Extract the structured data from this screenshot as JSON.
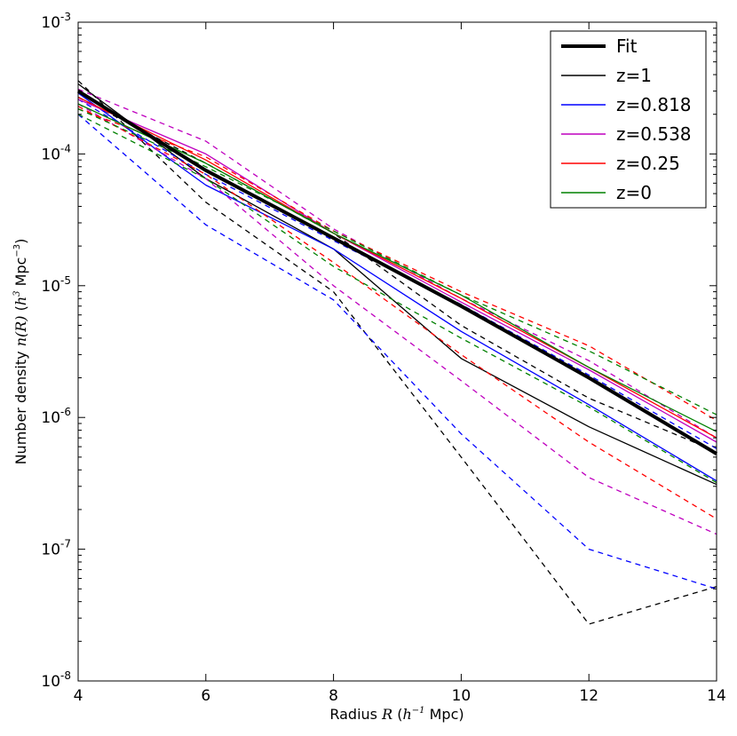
{
  "chart_data": {
    "type": "line",
    "title": "",
    "xlabel": {
      "prefix": "Radius ",
      "var": "R",
      "open": " (",
      "unit_base": "h",
      "unit_exp": "−1",
      "suffix": " Mpc)"
    },
    "ylabel": {
      "prefix": "Number density ",
      "func": "n(R)",
      "open": " (",
      "unit_base": "h",
      "unit_exp": "3",
      "mid": " Mpc",
      "mid_exp": "−3",
      "suffix": ")"
    },
    "xlim": [
      4,
      14
    ],
    "ylim_log10": [
      -8,
      -3
    ],
    "yscale": "log",
    "x_ticks": [
      "4",
      "6",
      "8",
      "10",
      "12",
      "14"
    ],
    "y_ticks": [
      {
        "exp": -8,
        "base": "10",
        "sup": "-8"
      },
      {
        "exp": -7,
        "base": "10",
        "sup": "-7"
      },
      {
        "exp": -6,
        "base": "10",
        "sup": "-6"
      },
      {
        "exp": -5,
        "base": "10",
        "sup": "-5"
      },
      {
        "exp": -4,
        "base": "10",
        "sup": "-4"
      },
      {
        "exp": -3,
        "base": "10",
        "sup": "-3"
      }
    ],
    "legend_position": "top-right",
    "x": [
      4,
      6,
      8,
      10,
      12,
      14
    ],
    "series": [
      {
        "name": "Fit",
        "color": "#000000",
        "style": "thick",
        "values": [
          0.0003,
          7.5e-05,
          2.3e-05,
          7e-06,
          2e-06,
          5.3e-07
        ]
      },
      {
        "name": "z=1",
        "color": "#000000",
        "style": "solid",
        "values": [
          0.00034,
          6.5e-05,
          1.9e-05,
          2.8e-06,
          8.5e-07,
          3.1e-07
        ]
      },
      {
        "name": "z=1 (dashed)",
        "color": "#000000",
        "style": "dashed",
        "legend": false,
        "values": [
          0.00036,
          4.3e-05,
          9e-06,
          5e-07,
          2.7e-08,
          5.2e-08
        ]
      },
      {
        "name": "z=1 (dashed 2)",
        "color": "#000000",
        "style": "dashed",
        "legend": false,
        "values": [
          0.00027,
          8.5e-05,
          2.5e-05,
          5e-06,
          1.4e-06,
          5.5e-07
        ]
      },
      {
        "name": "z=0.818",
        "color": "#0000ff",
        "style": "solid",
        "values": [
          0.00029,
          5.8e-05,
          1.9e-05,
          4.5e-06,
          1.25e-06,
          3.3e-07
        ]
      },
      {
        "name": "z=0.818 (dashed)",
        "color": "#0000ff",
        "style": "dashed",
        "legend": false,
        "values": [
          0.0002,
          2.9e-05,
          7.8e-06,
          7.5e-07,
          1e-07,
          5e-08
        ]
      },
      {
        "name": "z=0.818 (dashed 2)",
        "color": "#0000ff",
        "style": "dashed",
        "legend": false,
        "values": [
          0.00026,
          7e-05,
          2.2e-05,
          7.2e-06,
          2.1e-06,
          5.8e-07
        ]
      },
      {
        "name": "z=0.538",
        "color": "#bf00bf",
        "style": "solid",
        "values": [
          0.00026,
          0.0001,
          2.5e-05,
          7.5e-06,
          2.3e-06,
          6.5e-07
        ]
      },
      {
        "name": "z=0.538 (dashed)",
        "color": "#bf00bf",
        "style": "dashed",
        "legend": false,
        "values": [
          0.00031,
          0.000125,
          2.7e-05,
          8e-06,
          2.7e-06,
          7e-07
        ]
      },
      {
        "name": "z=0.538 (dashed 2)",
        "color": "#bf00bf",
        "style": "dashed",
        "legend": false,
        "values": [
          0.00024,
          6.5e-05,
          1e-05,
          1.9e-06,
          3.5e-07,
          1.3e-07
        ]
      },
      {
        "name": "z=0.25",
        "color": "#ff0000",
        "style": "solid",
        "values": [
          0.00027,
          9e-05,
          2.5e-05,
          8e-06,
          2.4e-06,
          7e-07
        ]
      },
      {
        "name": "z=0.25 (dashed)",
        "color": "#ff0000",
        "style": "dashed",
        "legend": false,
        "values": [
          0.00022,
          9.5e-05,
          2.6e-05,
          9e-06,
          3.5e-06,
          9.5e-07
        ]
      },
      {
        "name": "z=0.25 (dashed 2)",
        "color": "#ff0000",
        "style": "dashed",
        "legend": false,
        "values": [
          0.00023,
          7e-05,
          1.5e-05,
          3e-06,
          6.5e-07,
          1.7e-07
        ]
      },
      {
        "name": "z=0",
        "color": "#008000",
        "style": "solid",
        "values": [
          0.00024,
          8.5e-05,
          2.5e-05,
          8.5e-06,
          2.4e-06,
          7.8e-07
        ]
      },
      {
        "name": "z=0 (dashed)",
        "color": "#008000",
        "style": "dashed",
        "legend": false,
        "values": [
          0.00022,
          8e-05,
          2.6e-05,
          8.5e-06,
          3.2e-06,
          1.05e-06
        ]
      },
      {
        "name": "z=0 (dashed 2)",
        "color": "#008000",
        "style": "dashed",
        "legend": false,
        "values": [
          0.0002,
          6.5e-05,
          1.4e-05,
          4e-06,
          1.2e-06,
          3.2e-07
        ]
      }
    ]
  }
}
